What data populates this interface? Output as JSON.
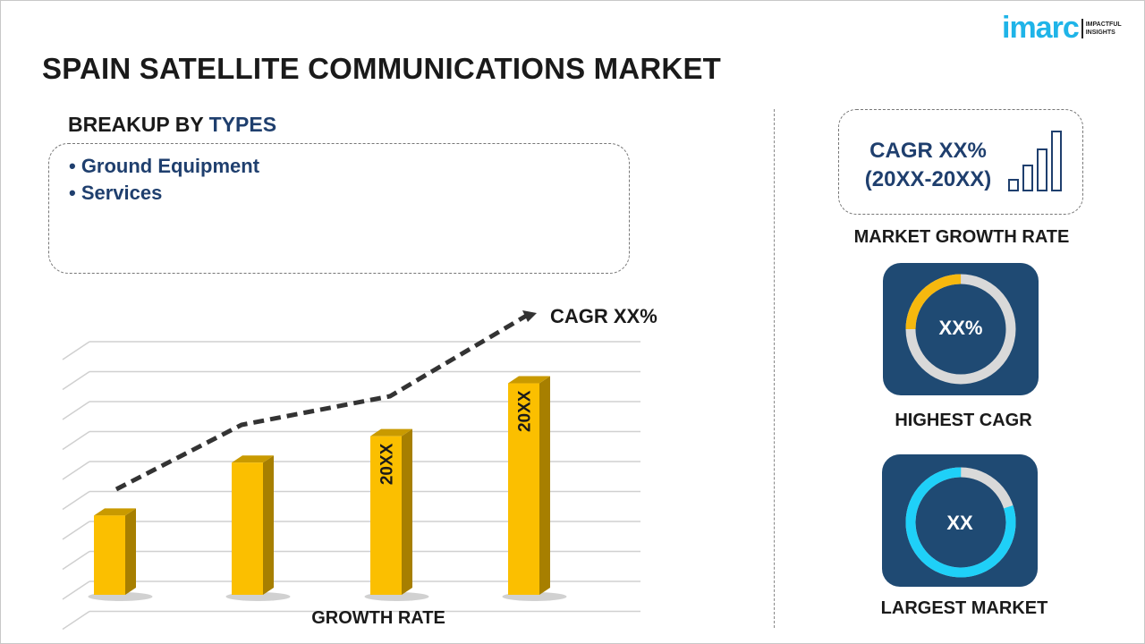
{
  "title": "SPAIN SATELLITE COMMUNICATIONS MARKET",
  "logo": {
    "word": "imarc",
    "tagline_1": "IMPACTFUL",
    "tagline_2": "INSIGHTS"
  },
  "breakup": {
    "heading_prefix": "BREAKUP BY",
    "heading_accent": "TYPES",
    "items": [
      "• Ground Equipment",
      "• Services"
    ]
  },
  "right": {
    "cagr_line1": "CAGR XX%",
    "cagr_line2": "(20XX-20XX)",
    "growth_label": "MARKET GROWTH RATE",
    "highest_value": "XX%",
    "highest_label": "HIGHEST CAGR",
    "largest_value": "XX",
    "largest_label": "LARGEST MARKET",
    "highest_fill_fraction": 0.25,
    "largest_fill_fraction": 0.8
  },
  "colors": {
    "accent": "#1f3f6e",
    "bar": "#fbbf00",
    "card": "#1f4a73",
    "yellow_ring": "#f6b80e",
    "cyan_ring": "#1fd0f8",
    "logo": "#1fb4e8"
  },
  "chart_data": {
    "type": "bar",
    "categories": [
      "",
      "",
      "",
      ""
    ],
    "values": [
      3,
      5,
      6,
      8
    ],
    "bar_labels": [
      "",
      "",
      "20XX",
      "20XX"
    ],
    "trend_line": "dashed",
    "annotation": "CAGR XX%",
    "xlabel": "GROWTH RATE",
    "ylabel": "",
    "ylim": [
      0,
      9
    ],
    "grid": true
  }
}
